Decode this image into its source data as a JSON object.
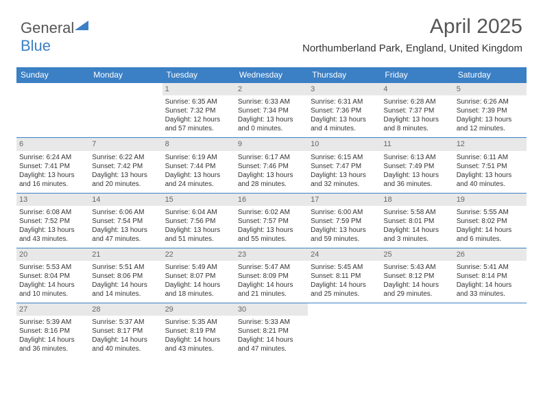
{
  "logo": {
    "text1": "General",
    "text2": "Blue"
  },
  "title": "April 2025",
  "subtitle": "Northumberland Park, England, United Kingdom",
  "colors": {
    "header_bg": "#3b7fc4",
    "header_text": "#ffffff",
    "daynum_bg": "#e8e8e8",
    "row_border": "#3b7fc4",
    "text": "#333333"
  },
  "dayHeaders": [
    "Sunday",
    "Monday",
    "Tuesday",
    "Wednesday",
    "Thursday",
    "Friday",
    "Saturday"
  ],
  "weeks": [
    [
      {
        "n": "",
        "empty": true
      },
      {
        "n": "",
        "empty": true
      },
      {
        "n": "1",
        "sunrise": "Sunrise: 6:35 AM",
        "sunset": "Sunset: 7:32 PM",
        "d1": "Daylight: 12 hours",
        "d2": "and 57 minutes."
      },
      {
        "n": "2",
        "sunrise": "Sunrise: 6:33 AM",
        "sunset": "Sunset: 7:34 PM",
        "d1": "Daylight: 13 hours",
        "d2": "and 0 minutes."
      },
      {
        "n": "3",
        "sunrise": "Sunrise: 6:31 AM",
        "sunset": "Sunset: 7:36 PM",
        "d1": "Daylight: 13 hours",
        "d2": "and 4 minutes."
      },
      {
        "n": "4",
        "sunrise": "Sunrise: 6:28 AM",
        "sunset": "Sunset: 7:37 PM",
        "d1": "Daylight: 13 hours",
        "d2": "and 8 minutes."
      },
      {
        "n": "5",
        "sunrise": "Sunrise: 6:26 AM",
        "sunset": "Sunset: 7:39 PM",
        "d1": "Daylight: 13 hours",
        "d2": "and 12 minutes."
      }
    ],
    [
      {
        "n": "6",
        "sunrise": "Sunrise: 6:24 AM",
        "sunset": "Sunset: 7:41 PM",
        "d1": "Daylight: 13 hours",
        "d2": "and 16 minutes."
      },
      {
        "n": "7",
        "sunrise": "Sunrise: 6:22 AM",
        "sunset": "Sunset: 7:42 PM",
        "d1": "Daylight: 13 hours",
        "d2": "and 20 minutes."
      },
      {
        "n": "8",
        "sunrise": "Sunrise: 6:19 AM",
        "sunset": "Sunset: 7:44 PM",
        "d1": "Daylight: 13 hours",
        "d2": "and 24 minutes."
      },
      {
        "n": "9",
        "sunrise": "Sunrise: 6:17 AM",
        "sunset": "Sunset: 7:46 PM",
        "d1": "Daylight: 13 hours",
        "d2": "and 28 minutes."
      },
      {
        "n": "10",
        "sunrise": "Sunrise: 6:15 AM",
        "sunset": "Sunset: 7:47 PM",
        "d1": "Daylight: 13 hours",
        "d2": "and 32 minutes."
      },
      {
        "n": "11",
        "sunrise": "Sunrise: 6:13 AM",
        "sunset": "Sunset: 7:49 PM",
        "d1": "Daylight: 13 hours",
        "d2": "and 36 minutes."
      },
      {
        "n": "12",
        "sunrise": "Sunrise: 6:11 AM",
        "sunset": "Sunset: 7:51 PM",
        "d1": "Daylight: 13 hours",
        "d2": "and 40 minutes."
      }
    ],
    [
      {
        "n": "13",
        "sunrise": "Sunrise: 6:08 AM",
        "sunset": "Sunset: 7:52 PM",
        "d1": "Daylight: 13 hours",
        "d2": "and 43 minutes."
      },
      {
        "n": "14",
        "sunrise": "Sunrise: 6:06 AM",
        "sunset": "Sunset: 7:54 PM",
        "d1": "Daylight: 13 hours",
        "d2": "and 47 minutes."
      },
      {
        "n": "15",
        "sunrise": "Sunrise: 6:04 AM",
        "sunset": "Sunset: 7:56 PM",
        "d1": "Daylight: 13 hours",
        "d2": "and 51 minutes."
      },
      {
        "n": "16",
        "sunrise": "Sunrise: 6:02 AM",
        "sunset": "Sunset: 7:57 PM",
        "d1": "Daylight: 13 hours",
        "d2": "and 55 minutes."
      },
      {
        "n": "17",
        "sunrise": "Sunrise: 6:00 AM",
        "sunset": "Sunset: 7:59 PM",
        "d1": "Daylight: 13 hours",
        "d2": "and 59 minutes."
      },
      {
        "n": "18",
        "sunrise": "Sunrise: 5:58 AM",
        "sunset": "Sunset: 8:01 PM",
        "d1": "Daylight: 14 hours",
        "d2": "and 3 minutes."
      },
      {
        "n": "19",
        "sunrise": "Sunrise: 5:55 AM",
        "sunset": "Sunset: 8:02 PM",
        "d1": "Daylight: 14 hours",
        "d2": "and 6 minutes."
      }
    ],
    [
      {
        "n": "20",
        "sunrise": "Sunrise: 5:53 AM",
        "sunset": "Sunset: 8:04 PM",
        "d1": "Daylight: 14 hours",
        "d2": "and 10 minutes."
      },
      {
        "n": "21",
        "sunrise": "Sunrise: 5:51 AM",
        "sunset": "Sunset: 8:06 PM",
        "d1": "Daylight: 14 hours",
        "d2": "and 14 minutes."
      },
      {
        "n": "22",
        "sunrise": "Sunrise: 5:49 AM",
        "sunset": "Sunset: 8:07 PM",
        "d1": "Daylight: 14 hours",
        "d2": "and 18 minutes."
      },
      {
        "n": "23",
        "sunrise": "Sunrise: 5:47 AM",
        "sunset": "Sunset: 8:09 PM",
        "d1": "Daylight: 14 hours",
        "d2": "and 21 minutes."
      },
      {
        "n": "24",
        "sunrise": "Sunrise: 5:45 AM",
        "sunset": "Sunset: 8:11 PM",
        "d1": "Daylight: 14 hours",
        "d2": "and 25 minutes."
      },
      {
        "n": "25",
        "sunrise": "Sunrise: 5:43 AM",
        "sunset": "Sunset: 8:12 PM",
        "d1": "Daylight: 14 hours",
        "d2": "and 29 minutes."
      },
      {
        "n": "26",
        "sunrise": "Sunrise: 5:41 AM",
        "sunset": "Sunset: 8:14 PM",
        "d1": "Daylight: 14 hours",
        "d2": "and 33 minutes."
      }
    ],
    [
      {
        "n": "27",
        "sunrise": "Sunrise: 5:39 AM",
        "sunset": "Sunset: 8:16 PM",
        "d1": "Daylight: 14 hours",
        "d2": "and 36 minutes."
      },
      {
        "n": "28",
        "sunrise": "Sunrise: 5:37 AM",
        "sunset": "Sunset: 8:17 PM",
        "d1": "Daylight: 14 hours",
        "d2": "and 40 minutes."
      },
      {
        "n": "29",
        "sunrise": "Sunrise: 5:35 AM",
        "sunset": "Sunset: 8:19 PM",
        "d1": "Daylight: 14 hours",
        "d2": "and 43 minutes."
      },
      {
        "n": "30",
        "sunrise": "Sunrise: 5:33 AM",
        "sunset": "Sunset: 8:21 PM",
        "d1": "Daylight: 14 hours",
        "d2": "and 47 minutes."
      },
      {
        "n": "",
        "empty": true
      },
      {
        "n": "",
        "empty": true
      },
      {
        "n": "",
        "empty": true
      }
    ]
  ]
}
